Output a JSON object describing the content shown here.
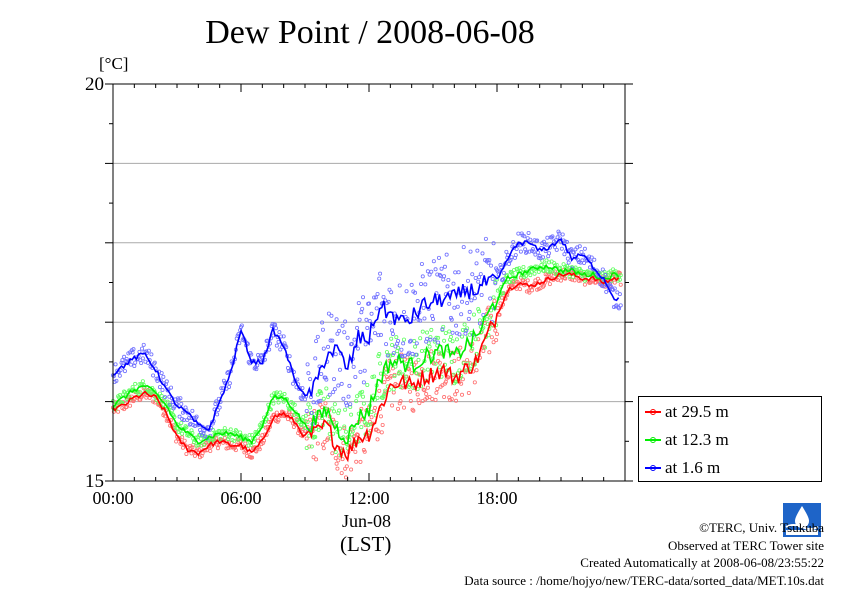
{
  "title": "Dew Point / 2008-06-08",
  "unit_label": "[°C]",
  "x_day_label": "Jun-08",
  "x_tz_label": "(LST)",
  "credits": {
    "copyright": "©TERC, Univ. Tsukuba",
    "observed": "Observed at TERC Tower site",
    "created": "Created Automatically at 2008-06-08/23:55:22",
    "source": "Data source : /home/hojyo/new/TERC-data/sorted_data/MET.10s.dat"
  },
  "colors": {
    "red": "#ff0000",
    "green": "#00ee00",
    "blue": "#0000ff"
  },
  "chart_data": {
    "type": "line",
    "title": "Dew Point / 2008-06-08",
    "ylabel": "[°C]",
    "ylim": [
      15,
      20
    ],
    "yticks": [
      15,
      20
    ],
    "xlim": [
      0,
      24
    ],
    "xticks": [
      "00:00",
      "06:00",
      "12:00",
      "18:00"
    ],
    "grid": true,
    "legend_position": "bottom-right",
    "x": [
      0,
      0.5,
      1,
      1.5,
      2,
      2.5,
      3,
      3.5,
      4,
      4.5,
      5,
      5.5,
      6,
      6.5,
      7,
      7.5,
      8,
      8.5,
      9,
      9.5,
      10,
      10.5,
      11,
      11.5,
      12,
      12.5,
      13,
      13.5,
      14,
      14.5,
      15,
      15.5,
      16,
      16.5,
      17,
      17.5,
      18,
      18.5,
      19,
      19.5,
      20,
      20.5,
      21,
      21.5,
      22,
      22.5,
      23,
      23.5
    ],
    "series": [
      {
        "name": "at 29.5 m",
        "color": "#ff0000",
        "values": [
          15.9,
          15.95,
          16.05,
          16.1,
          16.05,
          15.85,
          15.55,
          15.4,
          15.35,
          15.45,
          15.5,
          15.45,
          15.45,
          15.35,
          15.5,
          15.8,
          15.85,
          15.75,
          15.55,
          15.6,
          15.7,
          15.45,
          15.35,
          15.55,
          15.6,
          15.9,
          16.2,
          16.25,
          16.2,
          16.3,
          16.35,
          16.4,
          16.3,
          16.4,
          16.5,
          16.8,
          17.1,
          17.4,
          17.5,
          17.45,
          17.5,
          17.55,
          17.6,
          17.6,
          17.55,
          17.55,
          17.5,
          17.55
        ]
      },
      {
        "name": "at 12.3 m",
        "color": "#00ee00",
        "values": [
          15.95,
          16.05,
          16.15,
          16.2,
          16.1,
          15.95,
          15.7,
          15.6,
          15.5,
          15.55,
          15.6,
          15.6,
          15.55,
          15.5,
          15.7,
          16.05,
          16.05,
          15.9,
          15.7,
          15.75,
          15.9,
          15.65,
          15.55,
          15.8,
          15.9,
          16.3,
          16.5,
          16.5,
          16.45,
          16.55,
          16.6,
          16.65,
          16.55,
          16.7,
          16.8,
          17.05,
          17.3,
          17.55,
          17.6,
          17.65,
          17.7,
          17.7,
          17.65,
          17.65,
          17.6,
          17.6,
          17.55,
          17.6
        ]
      },
      {
        "name": "at 1.6 m",
        "color": "#0000ff",
        "values": [
          16.35,
          16.45,
          16.55,
          16.6,
          16.4,
          16.15,
          15.95,
          15.85,
          15.7,
          15.65,
          16.0,
          16.35,
          16.9,
          16.5,
          16.5,
          16.9,
          16.7,
          16.3,
          16.05,
          16.2,
          16.6,
          16.65,
          16.4,
          16.8,
          16.8,
          17.2,
          17.1,
          17.0,
          17.05,
          17.2,
          17.25,
          17.3,
          17.3,
          17.4,
          17.4,
          17.5,
          17.5,
          17.8,
          18.0,
          18.0,
          17.9,
          17.95,
          18.05,
          17.8,
          17.85,
          17.7,
          17.55,
          17.3
        ]
      }
    ]
  }
}
